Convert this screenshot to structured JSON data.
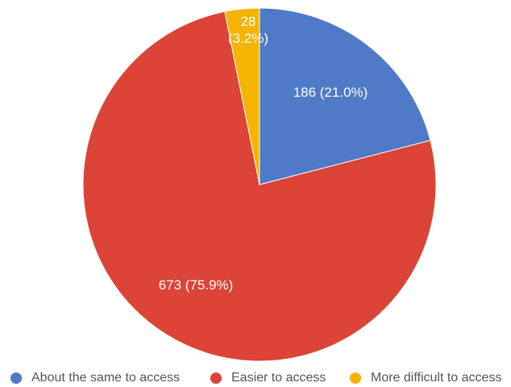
{
  "chart_data": {
    "type": "pie",
    "title": "",
    "legend_position": "bottom",
    "slices": [
      {
        "name": "About the same to access",
        "value": 186,
        "percent": "21.0%",
        "label_line1": "186 (21.0%)",
        "label_line2": "",
        "color": "#4e7ac7"
      },
      {
        "name": "Easier to access",
        "value": 673,
        "percent": "75.9%",
        "label_line1": "673 (75.9%)",
        "label_line2": "",
        "color": "#db4437"
      },
      {
        "name": "More difficult to access",
        "value": 28,
        "percent": "3.2%",
        "label_line1": "28",
        "label_line2": "(3.2%)",
        "color": "#f4b400"
      }
    ]
  }
}
